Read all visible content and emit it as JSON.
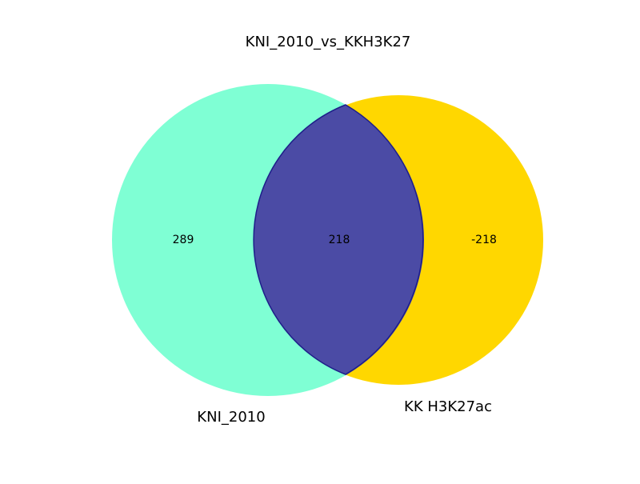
{
  "title": "KNI_2010_vs_KKH3K27",
  "sets": [
    {
      "name": "KNI_2010",
      "color": "#7fffd4"
    },
    {
      "name": "KK H3K27ac",
      "color": "#ffd700"
    }
  ],
  "intersection_color": "#4b4ba5",
  "intersection_stroke": "#1e1e8a",
  "counts": {
    "only_a": "289",
    "both": "218",
    "only_b": "-218"
  }
}
